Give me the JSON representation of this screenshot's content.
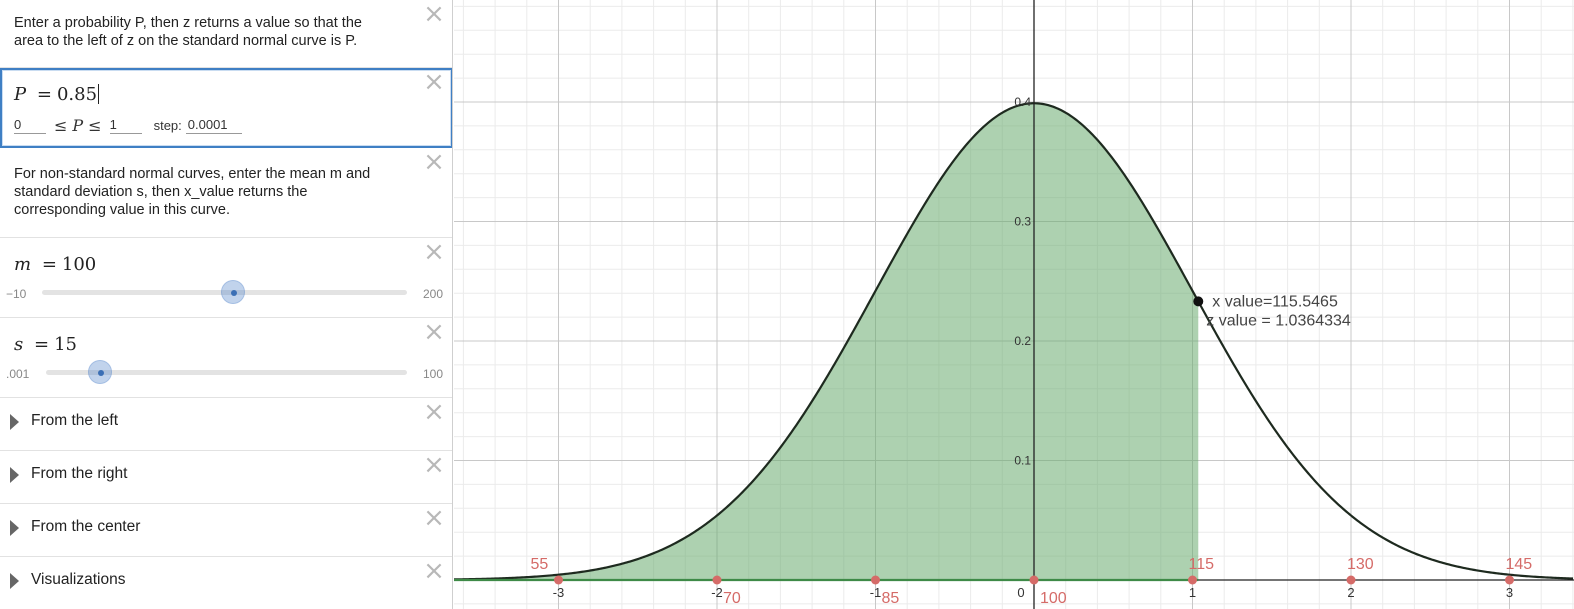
{
  "sidebar": {
    "note1": {
      "line1": "Enter a probability P, then z returns a value so that the",
      "line2": "area to the left of z on the standard normal curve is P."
    },
    "expr_p": {
      "var": "P",
      "eq": "=",
      "value": "0.85",
      "min": "0",
      "max": "1",
      "lim_op_left": "≤",
      "lim_var": "P",
      "lim_op_right": "≤",
      "step_label": "step:",
      "step": "0.0001"
    },
    "note2": {
      "line1": "For non-standard normal curves, enter the mean m and",
      "line2": "standard deviation s, then x_value returns the",
      "line3": "corresponding value in this curve."
    },
    "expr_m": {
      "var": "m",
      "eq": "=",
      "value": "100",
      "min": "−10",
      "max": "200",
      "fraction": 0.524
    },
    "expr_s": {
      "var": "s",
      "eq": "=",
      "value": "15",
      "min": ".001",
      "max": "100",
      "fraction": 0.15
    },
    "folders": [
      {
        "title": "From the left"
      },
      {
        "title": "From the right"
      },
      {
        "title": "From the center"
      },
      {
        "title": "Visualizations"
      }
    ],
    "close_glyph": "×"
  },
  "graph": {
    "annotation": {
      "x_value": "x value=115.5465",
      "z_value": "z value = 1.0364334"
    },
    "x_ticks": [
      "-3",
      "-2",
      "-1",
      "0",
      "1",
      "2",
      "3"
    ],
    "y_ticks": [
      "0.1",
      "0.2",
      "0.3",
      "0.4"
    ],
    "raw_labels": [
      "55",
      "70",
      "85",
      "100",
      "115",
      "130",
      "145"
    ],
    "colors": {
      "shade": "#6aac6f",
      "curve": "#1e2a1f",
      "point": "#d56b68",
      "baseline": "#3e8a47"
    }
  },
  "chart_data": {
    "type": "area",
    "curve": "standard normal density",
    "mean": 0,
    "sd": 1,
    "shaded_upper_z": 1.0364334,
    "xlim": [
      -3.5,
      3.4
    ],
    "ylim": [
      -0.02,
      0.5
    ],
    "x_tick_values": [
      -3,
      -2,
      -1,
      0,
      1,
      2,
      3
    ],
    "y_tick_values": [
      0.1,
      0.2,
      0.3,
      0.4
    ],
    "raw_points": [
      {
        "z": -3,
        "label": "55"
      },
      {
        "z": -2,
        "label": "70"
      },
      {
        "z": -1,
        "label": "85"
      },
      {
        "z": 0,
        "label": "100"
      },
      {
        "z": 1,
        "label": "115"
      },
      {
        "z": 2,
        "label": "130"
      },
      {
        "z": 3,
        "label": "145"
      }
    ],
    "grid": true
  }
}
